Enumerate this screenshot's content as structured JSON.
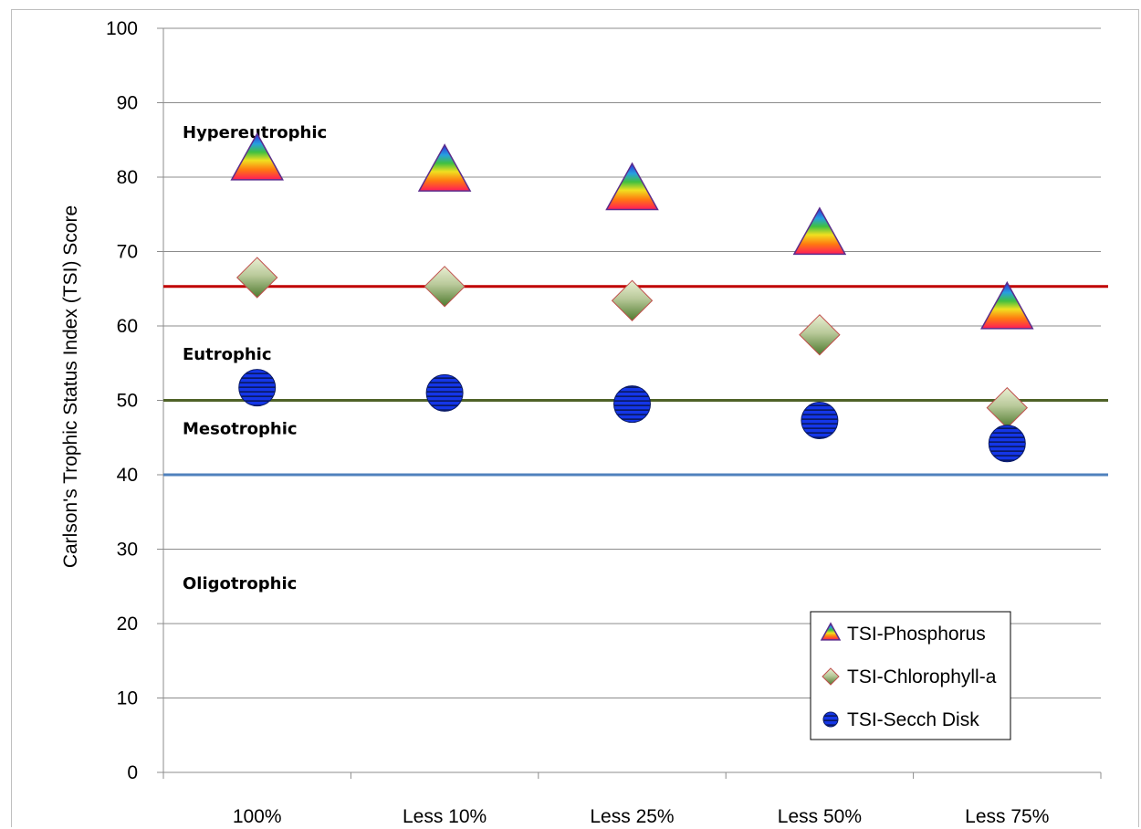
{
  "chart_data": {
    "type": "scatter",
    "title": "",
    "xlabel": "",
    "ylabel": "Carlson's Trophic Status Index  (TSI) Score",
    "categories": [
      "100%",
      "Less 10%",
      "Less 25%",
      "Less 50%",
      "Less 75%"
    ],
    "ylim": [
      0,
      100
    ],
    "yticks": [
      0,
      10,
      20,
      30,
      40,
      50,
      60,
      70,
      80,
      90,
      100
    ],
    "grid": "horizontal",
    "legend_position": "bottom-right",
    "series": [
      {
        "name": "TSI-Phosphorus",
        "marker": "triangle",
        "color": "#ff4020",
        "values": [
          82,
          80.5,
          78,
          72,
          62
        ]
      },
      {
        "name": "TSI-Chlorophyll-a",
        "marker": "diamond",
        "color": "#8aa868",
        "values": [
          66.5,
          65.3,
          63.4,
          58.8,
          49
        ]
      },
      {
        "name": "TSI-Secch Disk",
        "marker": "circle",
        "color": "#1a3fe0",
        "values": [
          51.7,
          51,
          49.5,
          47.3,
          44.2
        ]
      }
    ],
    "threshold_lines": [
      {
        "value": 65.3,
        "color": "#c00000"
      },
      {
        "value": 50.0,
        "color": "#4f6228"
      },
      {
        "value": 40.0,
        "color": "#4f81bd"
      }
    ],
    "annotations": [
      {
        "text": "Hypereutrophic",
        "y": 86
      },
      {
        "text": "Eutrophic",
        "y": 56.2
      },
      {
        "text": "Mesotrophic",
        "y": 46.2
      },
      {
        "text": "Oligotrophic",
        "y": 25.4
      }
    ]
  }
}
